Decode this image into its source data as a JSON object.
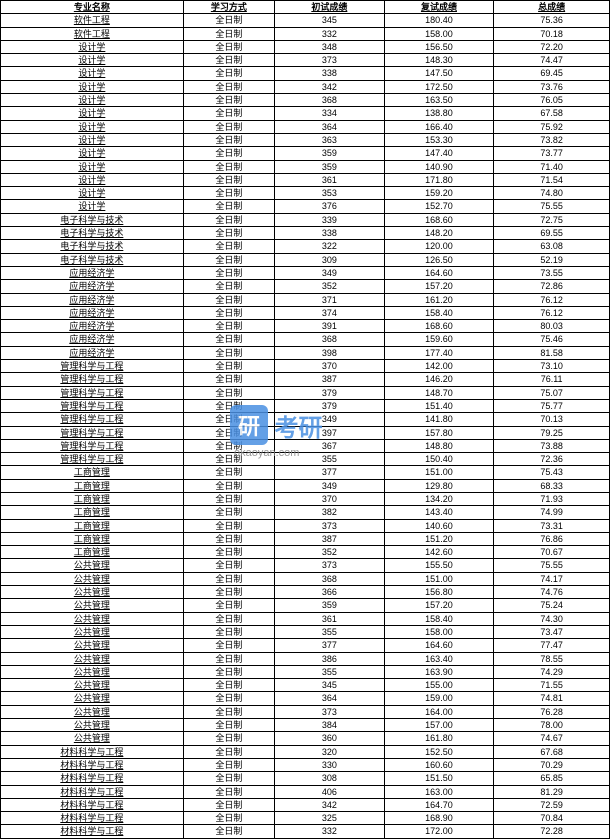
{
  "watermark": {
    "logo_text": "研",
    "main_text": "考研",
    "sub_text": "okaoyan.com"
  },
  "headers": {
    "major": "专业名称",
    "mode": "学习方式",
    "prelim": "初试成绩",
    "retest": "复试成绩",
    "total": "总成绩"
  },
  "rows": [
    {
      "major": "软件工程",
      "mode": "全日制",
      "prelim": "345",
      "retest": "180.40",
      "total": "75.36"
    },
    {
      "major": "软件工程",
      "mode": "全日制",
      "prelim": "332",
      "retest": "158.00",
      "total": "70.18"
    },
    {
      "major": "设计学",
      "mode": "全日制",
      "prelim": "348",
      "retest": "156.50",
      "total": "72.20"
    },
    {
      "major": "设计学",
      "mode": "全日制",
      "prelim": "373",
      "retest": "148.30",
      "total": "74.47"
    },
    {
      "major": "设计学",
      "mode": "全日制",
      "prelim": "338",
      "retest": "147.50",
      "total": "69.45"
    },
    {
      "major": "设计学",
      "mode": "全日制",
      "prelim": "342",
      "retest": "172.50",
      "total": "73.76"
    },
    {
      "major": "设计学",
      "mode": "全日制",
      "prelim": "368",
      "retest": "163.50",
      "total": "76.05"
    },
    {
      "major": "设计学",
      "mode": "全日制",
      "prelim": "334",
      "retest": "138.80",
      "total": "67.58"
    },
    {
      "major": "设计学",
      "mode": "全日制",
      "prelim": "364",
      "retest": "166.40",
      "total": "75.92"
    },
    {
      "major": "设计学",
      "mode": "全日制",
      "prelim": "363",
      "retest": "153.30",
      "total": "73.82"
    },
    {
      "major": "设计学",
      "mode": "全日制",
      "prelim": "359",
      "retest": "147.40",
      "total": "73.77"
    },
    {
      "major": "设计学",
      "mode": "全日制",
      "prelim": "359",
      "retest": "140.90",
      "total": "71.40"
    },
    {
      "major": "设计学",
      "mode": "全日制",
      "prelim": "361",
      "retest": "171.80",
      "total": "71.54"
    },
    {
      "major": "设计学",
      "mode": "全日制",
      "prelim": "353",
      "retest": "159.20",
      "total": "74.80"
    },
    {
      "major": "设计学",
      "mode": "全日制",
      "prelim": "376",
      "retest": "152.70",
      "total": "75.55"
    },
    {
      "major": "电子科学与技术",
      "mode": "全日制",
      "prelim": "339",
      "retest": "168.60",
      "total": "72.75"
    },
    {
      "major": "电子科学与技术",
      "mode": "全日制",
      "prelim": "338",
      "retest": "148.20",
      "total": "69.55"
    },
    {
      "major": "电子科学与技术",
      "mode": "全日制",
      "prelim": "322",
      "retest": "120.00",
      "total": "63.08"
    },
    {
      "major": "电子科学与技术",
      "mode": "全日制",
      "prelim": "309",
      "retest": "126.50",
      "total": "52.19"
    },
    {
      "major": "应用经济学",
      "mode": "全日制",
      "prelim": "349",
      "retest": "164.60",
      "total": "73.55"
    },
    {
      "major": "应用经济学",
      "mode": "全日制",
      "prelim": "352",
      "retest": "157.20",
      "total": "72.86"
    },
    {
      "major": "应用经济学",
      "mode": "全日制",
      "prelim": "371",
      "retest": "161.20",
      "total": "76.12"
    },
    {
      "major": "应用经济学",
      "mode": "全日制",
      "prelim": "374",
      "retest": "158.40",
      "total": "76.12"
    },
    {
      "major": "应用经济学",
      "mode": "全日制",
      "prelim": "391",
      "retest": "168.60",
      "total": "80.03"
    },
    {
      "major": "应用经济学",
      "mode": "全日制",
      "prelim": "368",
      "retest": "159.60",
      "total": "75.46"
    },
    {
      "major": "应用经济学",
      "mode": "全日制",
      "prelim": "398",
      "retest": "177.40",
      "total": "81.58"
    },
    {
      "major": "管理科学与工程",
      "mode": "全日制",
      "prelim": "370",
      "retest": "142.00",
      "total": "73.10"
    },
    {
      "major": "管理科学与工程",
      "mode": "全日制",
      "prelim": "387",
      "retest": "146.20",
      "total": "76.11"
    },
    {
      "major": "管理科学与工程",
      "mode": "全日制",
      "prelim": "379",
      "retest": "148.70",
      "total": "75.07"
    },
    {
      "major": "管理科学与工程",
      "mode": "全日制",
      "prelim": "379",
      "retest": "151.40",
      "total": "75.77"
    },
    {
      "major": "管理科学与工程",
      "mode": "全日制",
      "prelim": "349",
      "retest": "141.80",
      "total": "70.13"
    },
    {
      "major": "管理科学与工程",
      "mode": "全日制",
      "prelim": "397",
      "retest": "157.80",
      "total": "79.25"
    },
    {
      "major": "管理科学与工程",
      "mode": "全日制",
      "prelim": "367",
      "retest": "148.80",
      "total": "73.88"
    },
    {
      "major": "管理科学与工程",
      "mode": "全日制",
      "prelim": "355",
      "retest": "150.40",
      "total": "72.36"
    },
    {
      "major": "工商管理",
      "mode": "全日制",
      "prelim": "377",
      "retest": "151.00",
      "total": "75.43"
    },
    {
      "major": "工商管理",
      "mode": "全日制",
      "prelim": "349",
      "retest": "129.80",
      "total": "68.33"
    },
    {
      "major": "工商管理",
      "mode": "全日制",
      "prelim": "370",
      "retest": "134.20",
      "total": "71.93"
    },
    {
      "major": "工商管理",
      "mode": "全日制",
      "prelim": "382",
      "retest": "143.40",
      "total": "74.99"
    },
    {
      "major": "工商管理",
      "mode": "全日制",
      "prelim": "373",
      "retest": "140.60",
      "total": "73.31"
    },
    {
      "major": "工商管理",
      "mode": "全日制",
      "prelim": "387",
      "retest": "151.20",
      "total": "76.86"
    },
    {
      "major": "工商管理",
      "mode": "全日制",
      "prelim": "352",
      "retest": "142.60",
      "total": "70.67"
    },
    {
      "major": "公共管理",
      "mode": "全日制",
      "prelim": "373",
      "retest": "155.50",
      "total": "75.55"
    },
    {
      "major": "公共管理",
      "mode": "全日制",
      "prelim": "368",
      "retest": "151.00",
      "total": "74.17"
    },
    {
      "major": "公共管理",
      "mode": "全日制",
      "prelim": "366",
      "retest": "156.80",
      "total": "74.76"
    },
    {
      "major": "公共管理",
      "mode": "全日制",
      "prelim": "359",
      "retest": "157.20",
      "total": "75.24"
    },
    {
      "major": "公共管理",
      "mode": "全日制",
      "prelim": "361",
      "retest": "158.40",
      "total": "74.30"
    },
    {
      "major": "公共管理",
      "mode": "全日制",
      "prelim": "355",
      "retest": "158.00",
      "total": "73.47"
    },
    {
      "major": "公共管理",
      "mode": "全日制",
      "prelim": "377",
      "retest": "164.60",
      "total": "77.47"
    },
    {
      "major": "公共管理",
      "mode": "全日制",
      "prelim": "386",
      "retest": "163.40",
      "total": "78.55"
    },
    {
      "major": "公共管理",
      "mode": "全日制",
      "prelim": "355",
      "retest": "163.90",
      "total": "74.29"
    },
    {
      "major": "公共管理",
      "mode": "全日制",
      "prelim": "345",
      "retest": "155.00",
      "total": "71.55"
    },
    {
      "major": "公共管理",
      "mode": "全日制",
      "prelim": "364",
      "retest": "159.00",
      "total": "74.81"
    },
    {
      "major": "公共管理",
      "mode": "全日制",
      "prelim": "373",
      "retest": "164.00",
      "total": "76.28"
    },
    {
      "major": "公共管理",
      "mode": "全日制",
      "prelim": "384",
      "retest": "157.00",
      "total": "78.00"
    },
    {
      "major": "公共管理",
      "mode": "全日制",
      "prelim": "360",
      "retest": "161.80",
      "total": "74.67"
    },
    {
      "major": "材料科学与工程",
      "mode": "全日制",
      "prelim": "320",
      "retest": "152.50",
      "total": "67.68"
    },
    {
      "major": "材料科学与工程",
      "mode": "全日制",
      "prelim": "330",
      "retest": "160.60",
      "total": "70.29"
    },
    {
      "major": "材料科学与工程",
      "mode": "全日制",
      "prelim": "308",
      "retest": "151.50",
      "total": "65.85"
    },
    {
      "major": "材料科学与工程",
      "mode": "全日制",
      "prelim": "406",
      "retest": "163.00",
      "total": "81.29"
    },
    {
      "major": "材料科学与工程",
      "mode": "全日制",
      "prelim": "342",
      "retest": "164.70",
      "total": "72.59"
    },
    {
      "major": "材料科学与工程",
      "mode": "全日制",
      "prelim": "325",
      "retest": "168.90",
      "total": "70.84"
    },
    {
      "major": "材料科学与工程",
      "mode": "全日制",
      "prelim": "332",
      "retest": "172.00",
      "total": "72.28"
    }
  ]
}
